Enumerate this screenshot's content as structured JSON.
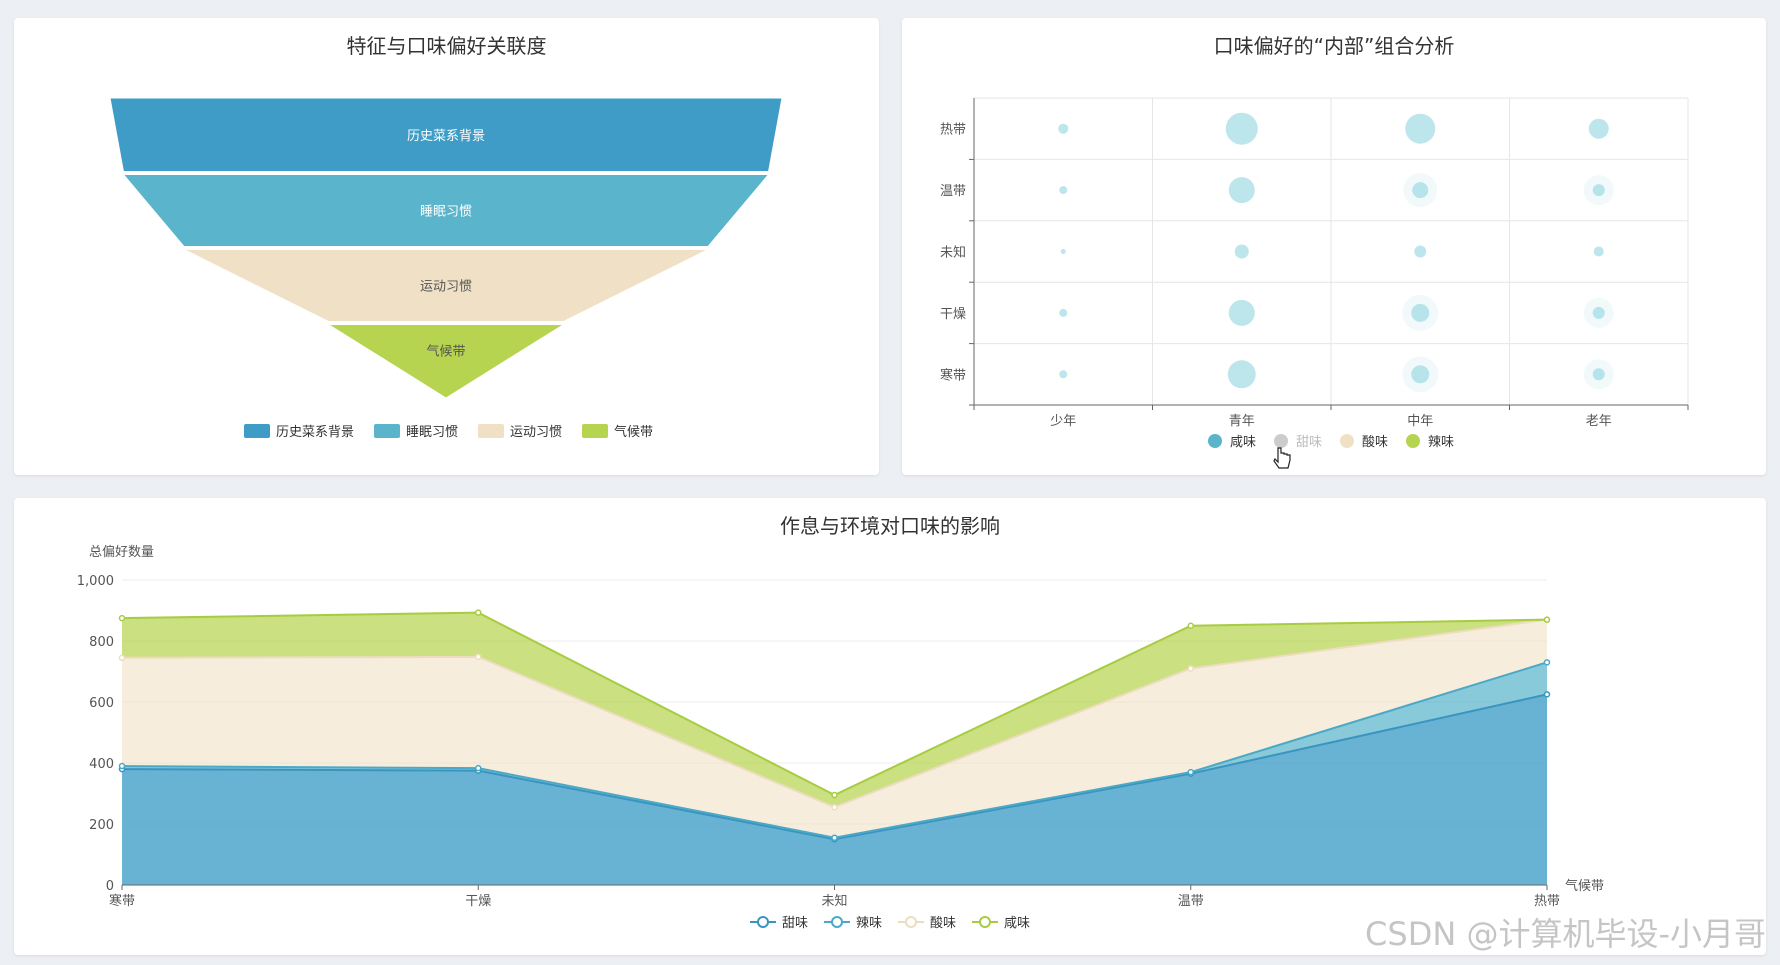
{
  "colors": {
    "palette": [
      "#3e9cc6",
      "#5ab4cc",
      "#f0e1c6",
      "#b6d450"
    ],
    "text": "#333333",
    "axis": "#666666"
  },
  "charts": {
    "funnel": {
      "title": "特征与口味偏好关联度"
    },
    "bubble": {
      "title": "口味偏好的“内部”组合分析"
    },
    "area": {
      "title": "作息与环境对口味的影响"
    }
  },
  "watermark": "CSDN @计算机毕设-小月哥",
  "chart_data": [
    {
      "type": "funnel",
      "title": "特征与口味偏好关联度",
      "categories": [
        "历史菜系背景",
        "睡眠习惯",
        "运动习惯",
        "气候带"
      ],
      "values": [
        100,
        96,
        78,
        35
      ],
      "legend": {
        "position": "bottom",
        "items": [
          "历史菜系背景",
          "睡眠习惯",
          "运动习惯",
          "气候带"
        ]
      }
    },
    {
      "type": "scatter",
      "title": "口味偏好的“内部”组合分析",
      "x_categories": [
        "少年",
        "青年",
        "中年",
        "老年"
      ],
      "y_categories": [
        "寒带",
        "干燥",
        "未知",
        "温带",
        "热带"
      ],
      "series": [
        {
          "name": "咸味",
          "points": [
            {
              "x": "少年",
              "y": "热带",
              "size": 10
            },
            {
              "x": "青年",
              "y": "热带",
              "size": 32
            },
            {
              "x": "中年",
              "y": "热带",
              "size": 30
            },
            {
              "x": "老年",
              "y": "热带",
              "size": 20
            },
            {
              "x": "少年",
              "y": "温带",
              "size": 8
            },
            {
              "x": "青年",
              "y": "温带",
              "size": 26
            },
            {
              "x": "中年",
              "y": "温带",
              "size": 16
            },
            {
              "x": "老年",
              "y": "温带",
              "size": 12
            },
            {
              "x": "少年",
              "y": "未知",
              "size": 5
            },
            {
              "x": "青年",
              "y": "未知",
              "size": 14
            },
            {
              "x": "中年",
              "y": "未知",
              "size": 12
            },
            {
              "x": "老年",
              "y": "未知",
              "size": 10
            },
            {
              "x": "少年",
              "y": "干燥",
              "size": 8
            },
            {
              "x": "青年",
              "y": "干燥",
              "size": 26
            },
            {
              "x": "中年",
              "y": "干燥",
              "size": 18
            },
            {
              "x": "老年",
              "y": "干燥",
              "size": 12
            },
            {
              "x": "少年",
              "y": "寒带",
              "size": 8
            },
            {
              "x": "青年",
              "y": "寒带",
              "size": 28
            },
            {
              "x": "中年",
              "y": "寒带",
              "size": 18
            },
            {
              "x": "老年",
              "y": "寒带",
              "size": 12
            }
          ]
        },
        {
          "name": "甜味",
          "points": []
        },
        {
          "name": "酸味",
          "points": []
        },
        {
          "name": "辣味",
          "points": []
        }
      ],
      "legend": {
        "position": "bottom",
        "items": [
          "咸味",
          "甜味",
          "酸味",
          "辣味"
        ],
        "inactive": [
          "甜味"
        ]
      },
      "grid": true
    },
    {
      "type": "area",
      "title": "作息与环境对口味的影响",
      "stacked": true,
      "xlabel": "气候带",
      "ylabel": "总偏好数量",
      "categories": [
        "寒带",
        "干燥",
        "未知",
        "温带",
        "热带"
      ],
      "ylim": [
        0,
        1000
      ],
      "yticks": [
        "0",
        "200",
        "400",
        "600",
        "800",
        "1,000"
      ],
      "series": [
        {
          "name": "甜味",
          "values": [
            380,
            375,
            150,
            365,
            625
          ]
        },
        {
          "name": "辣味",
          "values": [
            10,
            8,
            5,
            5,
            105
          ]
        },
        {
          "name": "酸味",
          "values": [
            355,
            365,
            100,
            340,
            140
          ]
        },
        {
          "name": "咸味",
          "values": [
            130,
            145,
            40,
            140,
            0
          ]
        }
      ],
      "legend": {
        "position": "bottom",
        "items": [
          "甜味",
          "辣味",
          "酸味",
          "咸味"
        ]
      },
      "grid": true
    }
  ]
}
